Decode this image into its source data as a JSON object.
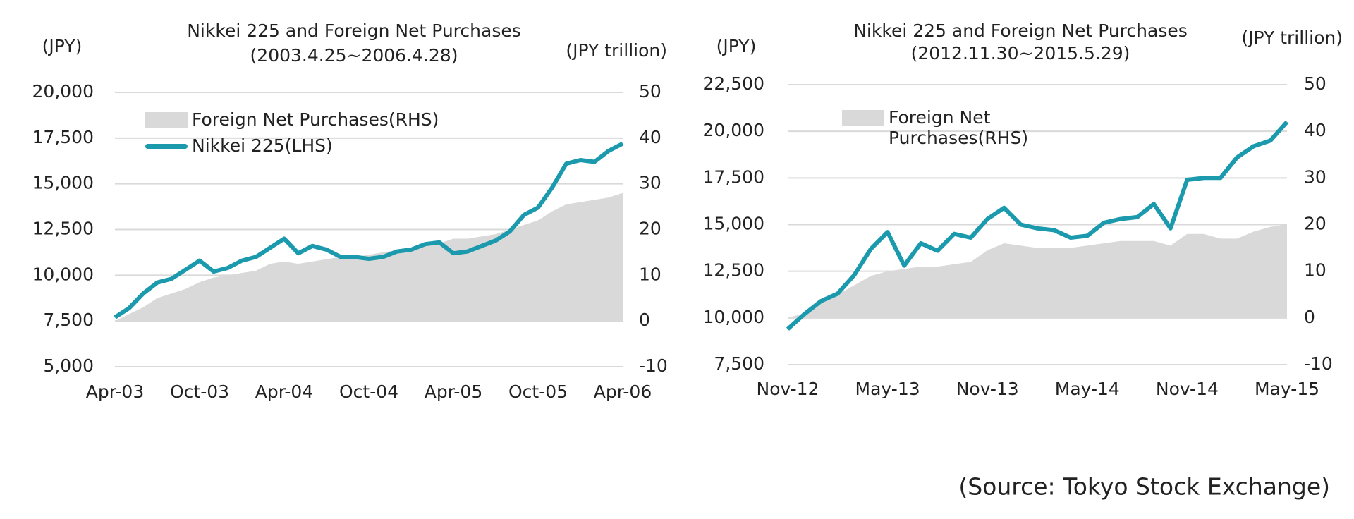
{
  "chart_data": [
    {
      "type": "line",
      "title": "Nikkei 225 and Foreign Net Purchases",
      "subtitle": "(2003.4.25~2006.4.28)",
      "y_label": "(JPY)",
      "y2_label": "(JPY trillion)",
      "x": [
        "2003-04",
        "2003-05",
        "2003-06",
        "2003-07",
        "2003-08",
        "2003-09",
        "2003-10",
        "2003-11",
        "2003-12",
        "2004-01",
        "2004-02",
        "2004-03",
        "2004-04",
        "2004-05",
        "2004-06",
        "2004-07",
        "2004-08",
        "2004-09",
        "2004-10",
        "2004-11",
        "2004-12",
        "2005-01",
        "2005-02",
        "2005-03",
        "2005-04",
        "2005-05",
        "2005-06",
        "2005-07",
        "2005-08",
        "2005-09",
        "2005-10",
        "2005-11",
        "2005-12",
        "2006-01",
        "2006-02",
        "2006-03",
        "2006-04"
      ],
      "xlim": [
        "2003-04",
        "2006-04"
      ],
      "xticks": [
        {
          "value": "2003-04",
          "label": "Apr-03"
        },
        {
          "value": "2003-10",
          "label": "Oct-03"
        },
        {
          "value": "2004-04",
          "label": "Apr-04"
        },
        {
          "value": "2004-10",
          "label": "Oct-04"
        },
        {
          "value": "2005-04",
          "label": "Apr-05"
        },
        {
          "value": "2005-10",
          "label": "Oct-05"
        },
        {
          "value": "2006-04",
          "label": "Apr-06"
        }
      ],
      "ylim": [
        5000,
        20000
      ],
      "yticks": [
        {
          "value": 5000,
          "label": "5,000"
        },
        {
          "value": 7500,
          "label": "7,500"
        },
        {
          "value": 10000,
          "label": "10,000"
        },
        {
          "value": 12500,
          "label": "12,500"
        },
        {
          "value": 15000,
          "label": "15,000"
        },
        {
          "value": 17500,
          "label": "17,500"
        },
        {
          "value": 20000,
          "label": "20,000"
        }
      ],
      "y2lim": [
        -10,
        50
      ],
      "y2ticks": [
        -10,
        0,
        10,
        20,
        30,
        40,
        50
      ],
      "grid": true,
      "series": [
        {
          "name": "Foreign Net Purchases(RHS)",
          "kind": "area",
          "axis": "y2",
          "color": "#d9d9d9",
          "values": [
            0,
            1.5,
            3,
            5,
            6,
            7,
            8.5,
            9.5,
            10,
            10.5,
            11,
            12.5,
            13,
            12.5,
            13,
            13.5,
            14,
            14,
            14.5,
            15,
            15.5,
            16,
            16.5,
            17,
            18,
            18,
            18.5,
            19,
            20,
            21,
            22,
            24,
            25.5,
            26,
            26.5,
            27,
            28
          ]
        },
        {
          "name": "Nikkei 225(LHS)",
          "kind": "line",
          "color": "#1b9aae",
          "values": [
            7700,
            8200,
            9000,
            9600,
            9800,
            10300,
            10800,
            10200,
            10400,
            10800,
            11000,
            11500,
            12000,
            11200,
            11600,
            11400,
            11000,
            11000,
            10900,
            11000,
            11300,
            11400,
            11700,
            11800,
            11200,
            11300,
            11600,
            11900,
            12400,
            13300,
            13700,
            14800,
            16100,
            16300,
            16200,
            16800,
            17200
          ]
        }
      ]
    },
    {
      "type": "line",
      "title": "Nikkei 225 and Foreign Net Purchases",
      "subtitle": "(2012.11.30~2015.5.29)",
      "y_label": "(JPY)",
      "y2_label": "(JPY trillion)",
      "x": [
        "2012-11",
        "2012-12",
        "2013-01",
        "2013-02",
        "2013-03",
        "2013-04",
        "2013-05",
        "2013-06",
        "2013-07",
        "2013-08",
        "2013-09",
        "2013-10",
        "2013-11",
        "2013-12",
        "2014-01",
        "2014-02",
        "2014-03",
        "2014-04",
        "2014-05",
        "2014-06",
        "2014-07",
        "2014-08",
        "2014-09",
        "2014-10",
        "2014-11",
        "2014-12",
        "2015-01",
        "2015-02",
        "2015-03",
        "2015-04",
        "2015-05"
      ],
      "xlim": [
        "2012-11",
        "2015-05"
      ],
      "xticks": [
        {
          "value": "2012-11",
          "label": "Nov-12"
        },
        {
          "value": "2013-05",
          "label": "May-13"
        },
        {
          "value": "2013-11",
          "label": "Nov-13"
        },
        {
          "value": "2014-05",
          "label": "May-14"
        },
        {
          "value": "2014-11",
          "label": "Nov-14"
        },
        {
          "value": "2015-05",
          "label": "May-15"
        }
      ],
      "ylim": [
        7500,
        22500
      ],
      "yticks": [
        {
          "value": 7500,
          "label": "7,500"
        },
        {
          "value": 10000,
          "label": "10,000"
        },
        {
          "value": 12500,
          "label": "12,500"
        },
        {
          "value": 15000,
          "label": "15,000"
        },
        {
          "value": 17500,
          "label": "17,500"
        },
        {
          "value": 20000,
          "label": "20,000"
        },
        {
          "value": 22500,
          "label": "22,500"
        }
      ],
      "y2lim": [
        -10,
        50
      ],
      "y2ticks": [
        -10,
        0,
        10,
        20,
        30,
        40,
        50
      ],
      "grid": true,
      "series": [
        {
          "name": "Foreign Net Purchases(RHS)",
          "kind": "area",
          "axis": "y2",
          "color": "#d9d9d9",
          "values": [
            0,
            1,
            3,
            5,
            7,
            9,
            10,
            10.5,
            11,
            11,
            11.5,
            12,
            14.5,
            16,
            15.5,
            15,
            15,
            15,
            15.5,
            16,
            16.5,
            16.5,
            16.5,
            15.5,
            18,
            18,
            17,
            17,
            18.5,
            19.5,
            20
          ]
        },
        {
          "kind": "line",
          "color": "#1b9aae",
          "values": [
            9400,
            10200,
            10900,
            11300,
            12300,
            13700,
            14600,
            12800,
            14000,
            13600,
            14500,
            14300,
            15300,
            15900,
            15000,
            14800,
            14700,
            14300,
            14400,
            15100,
            15300,
            15400,
            16100,
            14800,
            17400,
            17500,
            17500,
            18600,
            19200,
            19500,
            20500
          ]
        }
      ]
    }
  ],
  "source": "(Source: Tokyo Stock Exchange)"
}
